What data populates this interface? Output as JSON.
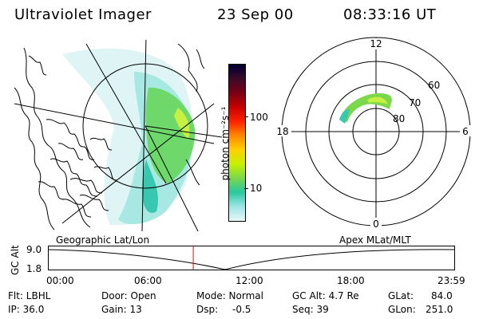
{
  "header": {
    "title": "Ultraviolet Imager",
    "date": "23 Sep 00",
    "time": "08:33:16 UT"
  },
  "colorbar": {
    "label": "photon cm⁻²s⁻¹",
    "ticks": [
      {
        "label": "100",
        "value": 100
      },
      {
        "label": "10",
        "value": 10
      }
    ],
    "stops": [
      "#000033",
      "#3b0a2a",
      "#7a0016",
      "#c80000",
      "#ff2000",
      "#ff8800",
      "#ffd000",
      "#c8f000",
      "#7ad84a",
      "#28c8a0",
      "#9ee6e6",
      "#e8f6f6"
    ]
  },
  "polar_plot": {
    "mlt_labels": {
      "top": "12",
      "right": "6",
      "bottom": "0",
      "left": "18"
    },
    "lat_labels": [
      "60",
      "70",
      "80"
    ]
  },
  "altitude_panel": {
    "geo_label": "Geographic Lat/Lon",
    "apex_label": "Apex MLat/MLT",
    "axis_label": "GC Alt",
    "y_ticks": [
      "9.0",
      "1.8"
    ],
    "x_ticks": [
      "00:00",
      "06:00",
      "12:00",
      "18:00",
      "23:59"
    ],
    "marker_time": "08:33",
    "marker_color": "#ff0000"
  },
  "info": {
    "flt": "Flt: LBHL",
    "ip": "IP: 36.0",
    "door": "Door: Open",
    "gain": "Gain: 13",
    "mode": "Mode: Normal",
    "dsp_label": "Dsp:",
    "dsp_value": "-0.5",
    "gc_alt": "GC Alt: 4.7 Re",
    "seq": "Seq: 39",
    "glat_label": "GLat:",
    "glat_value": "84.0",
    "glon_label": "GLon:",
    "glon_value": "251.0"
  }
}
